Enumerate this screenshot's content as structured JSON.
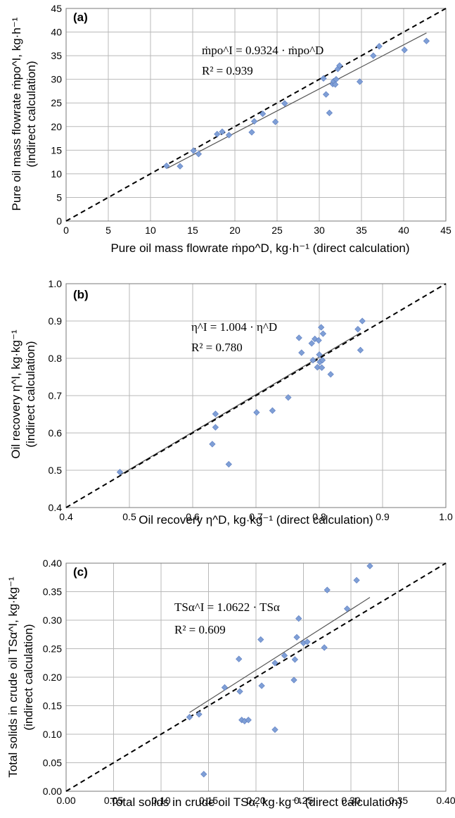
{
  "chart_data": [
    {
      "type": "scatter",
      "panel_label": "(a)",
      "xlabel": "Pure oil mass flowrate ṁpo^D, kg·h⁻¹ (direct calculation)",
      "ylabel_line1": "Pure oil mass flowrate ṁpo^I, kg·h⁻¹",
      "ylabel_line2": "(indirect calculation)",
      "xlim": [
        0,
        45
      ],
      "ylim": [
        0,
        45
      ],
      "xticks": [
        "0",
        "5",
        "10",
        "15",
        "20",
        "25",
        "30",
        "35",
        "40",
        "45"
      ],
      "yticks": [
        "0",
        "5",
        "10",
        "15",
        "20",
        "25",
        "30",
        "35",
        "40",
        "45"
      ],
      "grid": true,
      "equation": "ṁpo^I = 0.9324 · ṁpo^D",
      "r_squared": "R² = 0.939",
      "fit_slope": 0.9324,
      "fit_range": [
        12,
        42.7
      ],
      "x": [
        11.9,
        13.5,
        15.1,
        15.7,
        17.9,
        18.5,
        19.3,
        22.0,
        22.3,
        23.3,
        24.8,
        25.9,
        30.5,
        30.8,
        31.2,
        31.6,
        31.7,
        31.9,
        32.0,
        32.2,
        32.4,
        34.8,
        36.4,
        37.1,
        40.1,
        42.7
      ],
      "y": [
        11.7,
        11.6,
        14.9,
        14.2,
        18.4,
        18.9,
        18.2,
        18.8,
        21.1,
        22.7,
        21.0,
        24.9,
        30.2,
        26.8,
        22.9,
        29.0,
        29.6,
        28.9,
        30.0,
        32.2,
        32.9,
        29.5,
        35.0,
        37.0,
        36.2,
        38.1
      ]
    },
    {
      "type": "scatter",
      "panel_label": "(b)",
      "xlabel": "Oil recovery η^D, kg·kg⁻¹ (direct calculation)",
      "ylabel_line1": "Oil recovery η^I, kg·kg⁻¹",
      "ylabel_line2": "(indirect calculation)",
      "xlim": [
        0.4,
        1.0
      ],
      "ylim": [
        0.4,
        1.0
      ],
      "xticks": [
        "0.4",
        "0.5",
        "0.6",
        "0.7",
        "0.8",
        "0.9",
        "1.0"
      ],
      "yticks": [
        "0.4",
        "0.5",
        "0.6",
        "0.7",
        "0.8",
        "0.9",
        "1.0"
      ],
      "grid": true,
      "equation": "η^I = 1.004 · η^D",
      "r_squared": "R² = 0.780",
      "fit_slope": 1.004,
      "fit_range": [
        0.485,
        0.865
      ],
      "x": [
        0.485,
        0.631,
        0.636,
        0.636,
        0.657,
        0.701,
        0.726,
        0.751,
        0.768,
        0.772,
        0.788,
        0.79,
        0.793,
        0.797,
        0.799,
        0.8,
        0.801,
        0.803,
        0.804,
        0.805,
        0.806,
        0.818,
        0.861,
        0.865,
        0.868
      ],
      "y": [
        0.495,
        0.57,
        0.651,
        0.615,
        0.516,
        0.655,
        0.66,
        0.695,
        0.855,
        0.815,
        0.84,
        0.795,
        0.852,
        0.776,
        0.848,
        0.81,
        0.79,
        0.883,
        0.775,
        0.795,
        0.866,
        0.757,
        0.878,
        0.822,
        0.9
      ]
    },
    {
      "type": "scatter",
      "panel_label": "(c)",
      "xlabel": "Total solids in crude oil TSα, kg·kg⁻¹ (direct calculation)",
      "ylabel_line1": "Total solids in crude oil TSα^I, kg·kg⁻¹",
      "ylabel_line2": "(indirect calculation)",
      "xlim": [
        0,
        0.4
      ],
      "ylim": [
        0,
        0.4
      ],
      "xticks": [
        "0.00",
        "0.05",
        "0.10",
        "0.15",
        "0.20",
        "0.25",
        "0.30",
        "0.35",
        "0.40"
      ],
      "yticks": [
        "0.00",
        "0.05",
        "0.10",
        "0.15",
        "0.20",
        "0.25",
        "0.30",
        "0.35",
        "0.40"
      ],
      "grid": true,
      "equation": "TSα^I = 1.0622 · TSα",
      "r_squared": "R² = 0.609",
      "fit_slope": 1.0622,
      "fit_range": [
        0.13,
        0.32
      ],
      "x": [
        0.13,
        0.14,
        0.145,
        0.167,
        0.182,
        0.183,
        0.185,
        0.188,
        0.192,
        0.205,
        0.206,
        0.22,
        0.22,
        0.23,
        0.24,
        0.241,
        0.243,
        0.245,
        0.25,
        0.254,
        0.272,
        0.275,
        0.296,
        0.306,
        0.32
      ],
      "y": [
        0.13,
        0.135,
        0.03,
        0.182,
        0.232,
        0.175,
        0.125,
        0.123,
        0.125,
        0.266,
        0.185,
        0.108,
        0.225,
        0.238,
        0.195,
        0.231,
        0.27,
        0.303,
        0.26,
        0.262,
        0.252,
        0.353,
        0.32,
        0.37,
        0.395
      ]
    }
  ]
}
